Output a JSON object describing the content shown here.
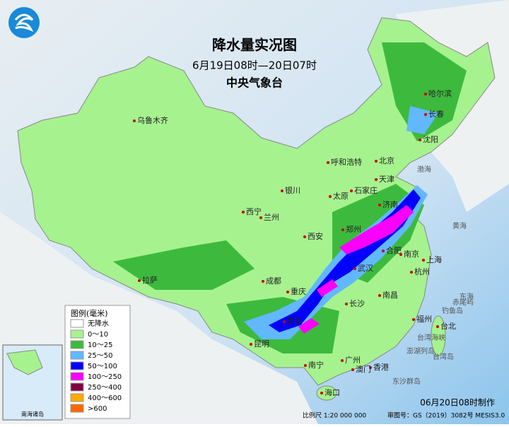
{
  "header": {
    "title": "降水量实况图",
    "subtitle": "6月19日08时—20日07时",
    "agency": "中央气象台"
  },
  "legend": {
    "title": "图例(毫米)",
    "items": [
      {
        "label": "无降水",
        "color": "#ffffff"
      },
      {
        "label": "0～10",
        "color": "#a6f28f"
      },
      {
        "label": "10～25",
        "color": "#3dba3d"
      },
      {
        "label": "25～50",
        "color": "#61b8ff"
      },
      {
        "label": "50～100",
        "color": "#0000fe"
      },
      {
        "label": "100～250",
        "color": "#fa00fa"
      },
      {
        "label": "250～400",
        "color": "#800040"
      },
      {
        "label": "400～600",
        "color": "#ffaa00"
      },
      {
        "label": ">600",
        "color": "#ff6600"
      }
    ]
  },
  "cities": [
    "哈尔滨",
    "长春",
    "沈阳",
    "乌鲁木齐",
    "呼和浩特",
    "北京",
    "天津",
    "石家庄",
    "太原",
    "济南",
    "银川",
    "西宁",
    "兰州",
    "郑州",
    "西安",
    "合肥",
    "南京",
    "上海",
    "武汉",
    "杭州",
    "成都",
    "重庆",
    "拉萨",
    "长沙",
    "南昌",
    "贵阳",
    "昆明",
    "福州",
    "台北",
    "广州",
    "南宁",
    "香港",
    "澳门",
    "海口"
  ],
  "places": [
    "渤海",
    "黄海",
    "东海",
    "赤尾屿",
    "钓鱼岛",
    "台湾岛",
    "澎湖列岛",
    "台湾海峡",
    "东沙群岛"
  ],
  "inset": {
    "title": "南海诸岛"
  },
  "footer": {
    "made": "06月20日08时制作",
    "scale": "比例尺 1:20 000 000",
    "review": "审图号：GS（2019）3082号 MESIS3.0"
  }
}
